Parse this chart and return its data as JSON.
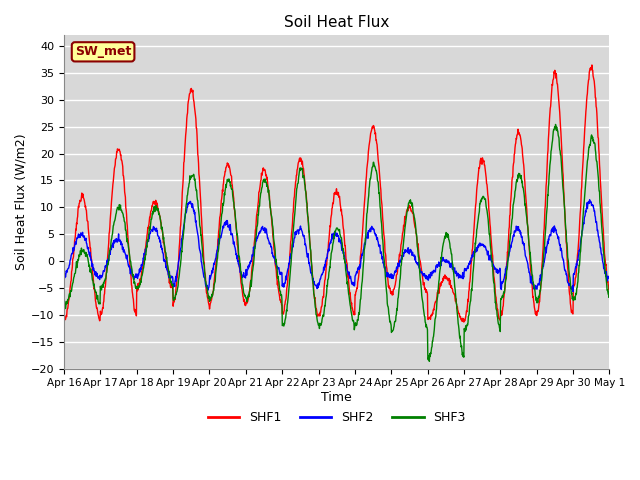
{
  "title": "Soil Heat Flux",
  "xlabel": "Time",
  "ylabel": "Soil Heat Flux (W/m2)",
  "ylim": [
    -20,
    42
  ],
  "yticks": [
    -20,
    -15,
    -10,
    -5,
    0,
    5,
    10,
    15,
    20,
    25,
    30,
    35,
    40
  ],
  "xtick_labels": [
    "Apr 16",
    "Apr 17",
    "Apr 18",
    "Apr 19",
    "Apr 20",
    "Apr 21",
    "Apr 22",
    "Apr 23",
    "Apr 24",
    "Apr 25",
    "Apr 26",
    "Apr 27",
    "Apr 28",
    "Apr 29",
    "Apr 30",
    "May 1"
  ],
  "annotation_text": "SW_met",
  "annotation_facecolor": "#FFFF99",
  "annotation_edgecolor": "#8B0000",
  "annotation_textcolor": "#8B0000",
  "legend_labels": [
    "SHF1",
    "SHF2",
    "SHF3"
  ],
  "line_colors": [
    "red",
    "blue",
    "green"
  ],
  "plot_facecolor": "#D8D8D8",
  "grid_color": "white",
  "n_days": 15.0,
  "n_points": 1440
}
